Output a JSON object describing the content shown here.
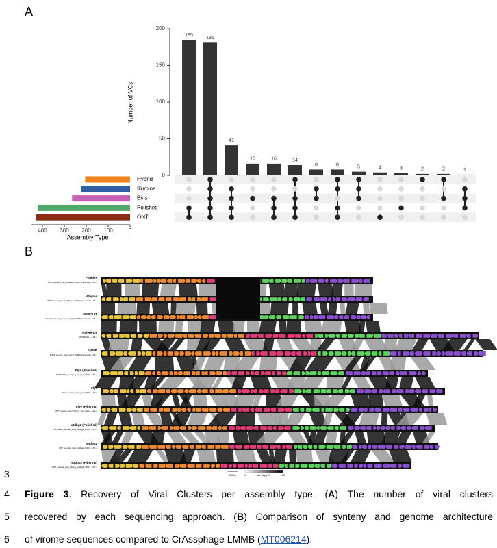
{
  "panel_labels": [
    "A",
    "B"
  ],
  "chart_data": {
    "type": "upset",
    "y_label": "Number of VCs",
    "x_label": "Assembly Type",
    "values": [
      185,
      181,
      41,
      16,
      16,
      14,
      8,
      8,
      5,
      4,
      3,
      2,
      2,
      1
    ],
    "ylim": [
      0,
      200
    ],
    "yticks": [
      0,
      50,
      100,
      150,
      200
    ],
    "bar_color": "#333333",
    "sets": [
      {
        "name": "Hybrid",
        "color": "#f0821e",
        "size": 205
      },
      {
        "name": "Illumina",
        "color": "#2f5fa3",
        "size": 225
      },
      {
        "name": "Bins",
        "color": "#c85fb7",
        "size": 265
      },
      {
        "name": "Polished",
        "color": "#4faa6a",
        "size": 420
      },
      {
        "name": "ONT",
        "color": "#8b2d12",
        "size": 430
      }
    ],
    "set_xlim": [
      0,
      450
    ],
    "set_xticks": [
      400,
      300,
      200,
      100,
      0
    ],
    "membership": [
      [
        0,
        0,
        0,
        1,
        1
      ],
      [
        1,
        1,
        1,
        1,
        1
      ],
      [
        0,
        1,
        1,
        1,
        1
      ],
      [
        0,
        0,
        1,
        0,
        0
      ],
      [
        0,
        0,
        1,
        1,
        1
      ],
      [
        1,
        0,
        1,
        1,
        1
      ],
      [
        0,
        1,
        1,
        0,
        0
      ],
      [
        1,
        1,
        0,
        1,
        1
      ],
      [
        1,
        1,
        1,
        0,
        0
      ],
      [
        0,
        0,
        0,
        0,
        1
      ],
      [
        0,
        0,
        0,
        1,
        0
      ],
      [
        1,
        0,
        0,
        0,
        0
      ],
      [
        1,
        0,
        1,
        0,
        0
      ],
      [
        0,
        1,
        1,
        1,
        0
      ]
    ]
  },
  "synteny": {
    "tracks": [
      {
        "name": "Phables",
        "id": "BINS_sample_pool_phables_00007 (reversed)-1-96-1"
      },
      {
        "name": "cRhyme",
        "id": "BINS_sample_pool_cRhyme_00001 (reversed)-1-96-1"
      },
      {
        "name": "MEGAHIT",
        "id": "Illumina_sample_pool_megahit_00009 (reversed)-1-96-1"
      },
      {
        "name": "Reference",
        "id": "MT006214.1-1-96-1"
      },
      {
        "name": "VAMB",
        "id": "BINS_sample_pool_vamb_00088 (reversed)-1-96-1"
      },
      {
        "name": "Flye (Polished)",
        "id": "POLISHED_sample_pool_flye_00001-1-96-1"
      },
      {
        "name": "Flye",
        "id": "ONT_sample_pool_flye_00008-1-96-1"
      },
      {
        "name": "Flye (Filtering)",
        "id": "ONT_sample_pool_filtlong_flye_00014-1-96-1"
      },
      {
        "name": "wtdbg2 (Polished)",
        "id": "POLISHED_sample_pool_wtdbg2_00012-1-97-1"
      },
      {
        "name": "wtdbg2",
        "id": "ONT_sample_pool_wtdbg2_00013-1-97-1"
      },
      {
        "name": "wtdbg2 (Filtering)",
        "id": "ONT_sample_pool_filtlong_wtdbg2_00017-1-97-1"
      }
    ],
    "legend": {
      "scale": "2.5kb",
      "min": "0",
      "title": "Identity (%)",
      "max": "100"
    }
  },
  "line_numbers": [
    "3",
    "4",
    "5",
    "6"
  ],
  "caption": {
    "lines": [
      [
        {
          "text": "Figure 3",
          "bold": true
        },
        {
          "text": ". Recovery of Viral Clusters per assembly type. ("
        },
        {
          "text": "A",
          "bold": true
        },
        {
          "text": ") The number of viral clusters"
        }
      ],
      [
        {
          "text": "recovered by each sequencing approach. ("
        },
        {
          "text": "B",
          "bold": true
        },
        {
          "text": ") Comparison of synteny and genome architecture"
        }
      ],
      [
        {
          "text": "of virome sequences compared to CrAssphage LMMB ("
        },
        {
          "text": "MT006214",
          "link": true
        },
        {
          "text": ")."
        }
      ]
    ]
  }
}
